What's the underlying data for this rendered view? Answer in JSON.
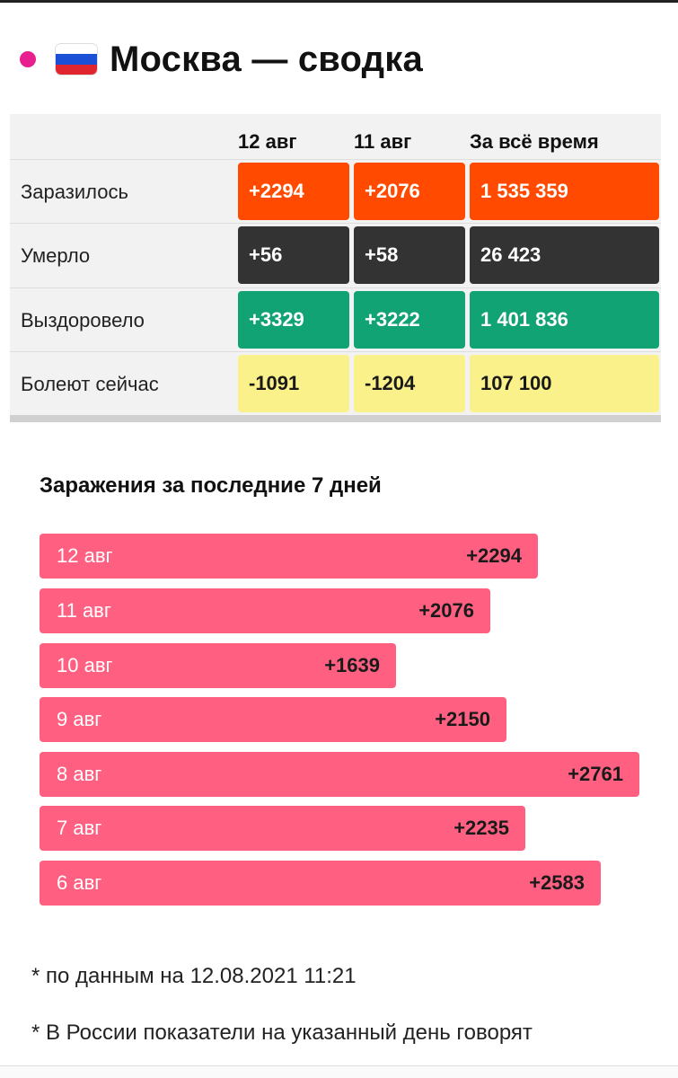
{
  "header": {
    "title": "Москва — сводка",
    "flag_colors": [
      "#ffffff",
      "#1b4fd6",
      "#e0252e"
    ],
    "live_dot_color": "#e81f8f"
  },
  "summary_table": {
    "columns": [
      "12 авг",
      "11 авг",
      "За всё время"
    ],
    "rows": [
      {
        "label": "Заразилось",
        "values": [
          "+2294",
          "+2076",
          "1 535 359"
        ],
        "color": "#ff4a00"
      },
      {
        "label": "Умерло",
        "values": [
          "+56",
          "+58",
          "26 423"
        ],
        "color": "#333333"
      },
      {
        "label": "Выздоровело",
        "values": [
          "+3329",
          "+3222",
          "1 401 836"
        ],
        "color": "#12a374"
      },
      {
        "label": "Болеют сейчас",
        "values": [
          "-1091",
          "-1204",
          "107 100"
        ],
        "color": "#fbf18a"
      }
    ]
  },
  "chart": {
    "title": "Заражения за последние 7 дней",
    "bar_color": "#ff6081",
    "rows": [
      {
        "date": "12 авг",
        "label": "+2294",
        "value": 2294
      },
      {
        "date": "11 авг",
        "label": "+2076",
        "value": 2076
      },
      {
        "date": "10 авг",
        "label": "+1639",
        "value": 1639
      },
      {
        "date": "9 авг",
        "label": "+2150",
        "value": 2150
      },
      {
        "date": "8 авг",
        "label": "+2761",
        "value": 2761
      },
      {
        "date": "7 авг",
        "label": "+2235",
        "value": 2235
      },
      {
        "date": "6 авг",
        "label": "+2583",
        "value": 2583
      }
    ]
  },
  "notes": [
    "* по данным на 12.08.2021 11:21",
    "* В России показатели на указанный день говорят"
  ]
}
